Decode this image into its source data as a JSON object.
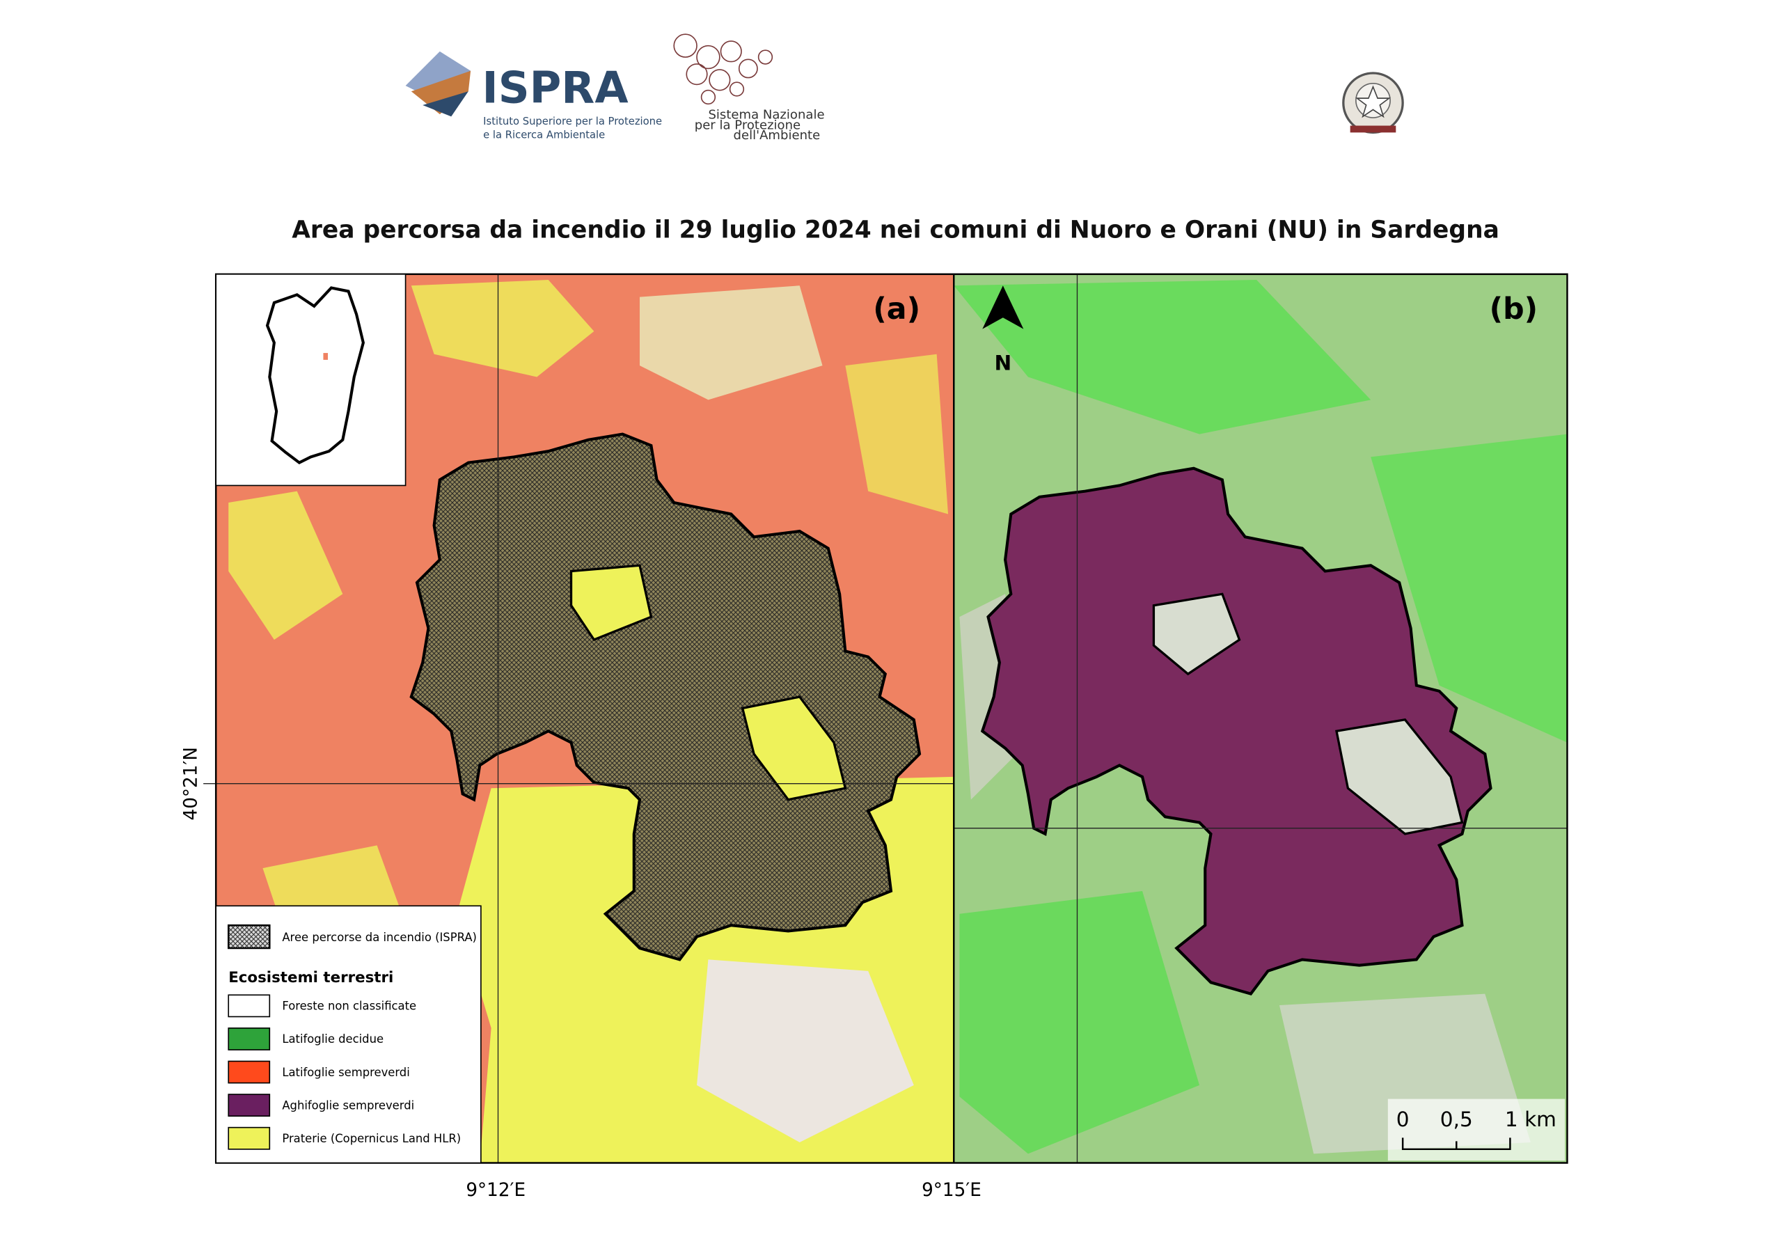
{
  "header": {
    "ispra": "ISPRA",
    "ispra_sub1": "Istituto Superiore per la Protezione",
    "ispra_sub2": "e la Ricerca Ambientale",
    "snpa1": "Sistema Nazionale",
    "snpa2": "per la Protezione",
    "snpa3": "dell'Ambiente"
  },
  "title": "Area percorsa da incendio il 29 luglio 2024 nei comuni di Nuoro e Orani (NU) in Sardegna",
  "panels": {
    "a": "(a)",
    "b": "(b)"
  },
  "north": "N",
  "coords": {
    "lat": "40°21′N",
    "lon1": "9°12′E",
    "lon2": "9°15′E"
  },
  "scale": {
    "t0": "0",
    "t1": "0,5",
    "t2": "1 km"
  },
  "legend": {
    "burned": "Aree percorse da incendio (ISPRA)",
    "heading": "Ecosistemi terrestri",
    "items": [
      {
        "label": "Foreste non classificate",
        "color": "#ffffff"
      },
      {
        "label": "Latifoglie decidue",
        "color": "#2ea33a"
      },
      {
        "label": "Latifoglie sempreverdi",
        "color": "#ff4a1c"
      },
      {
        "label": "Aghifoglie sempreverdi",
        "color": "#6a1f60"
      },
      {
        "label": "Praterie (Copernicus Land HLR)",
        "color": "#eef25a"
      }
    ]
  }
}
